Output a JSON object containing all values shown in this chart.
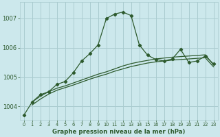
{
  "title": "Graphe pression niveau de la mer (hPa)",
  "bg_color": "#cce8ec",
  "grid_color": "#aaccd0",
  "line_color": "#2d5a2d",
  "xlim": [
    -0.5,
    23.5
  ],
  "ylim": [
    1003.55,
    1007.55
  ],
  "yticks": [
    1004,
    1005,
    1006,
    1007
  ],
  "xticks": [
    0,
    1,
    2,
    3,
    4,
    5,
    6,
    7,
    8,
    9,
    10,
    11,
    12,
    13,
    14,
    15,
    16,
    17,
    18,
    19,
    20,
    21,
    22,
    23
  ],
  "main_line_x": [
    0,
    1,
    2,
    3,
    4,
    5,
    6,
    7,
    8,
    9,
    10,
    11,
    12,
    13,
    14,
    15,
    16,
    17,
    18,
    19,
    20,
    21,
    22,
    23
  ],
  "main_line_y": [
    1003.7,
    1004.15,
    1004.4,
    1004.5,
    1004.75,
    1004.85,
    1005.15,
    1005.55,
    1005.8,
    1006.1,
    1007.0,
    1007.15,
    1007.22,
    1007.1,
    1006.1,
    1005.75,
    1005.6,
    1005.55,
    1005.62,
    1005.95,
    1005.5,
    1005.55,
    1005.72,
    1005.45
  ],
  "smooth_line1_x": [
    1,
    2,
    3,
    4,
    5,
    6,
    7,
    8,
    9,
    10,
    11,
    12,
    13,
    14,
    15,
    16,
    17,
    18,
    19,
    20,
    21,
    22,
    23
  ],
  "smooth_line1_y": [
    1004.15,
    1004.35,
    1004.5,
    1004.62,
    1004.7,
    1004.8,
    1004.9,
    1005.0,
    1005.1,
    1005.18,
    1005.28,
    1005.38,
    1005.46,
    1005.52,
    1005.57,
    1005.62,
    1005.65,
    1005.68,
    1005.7,
    1005.72,
    1005.74,
    1005.76,
    1005.42
  ],
  "smooth_line2_x": [
    1,
    2,
    3,
    4,
    5,
    6,
    7,
    8,
    9,
    10,
    11,
    12,
    13,
    14,
    15,
    16,
    17,
    18,
    19,
    20,
    21,
    22,
    23
  ],
  "smooth_line2_y": [
    1004.05,
    1004.25,
    1004.42,
    1004.55,
    1004.64,
    1004.73,
    1004.83,
    1004.93,
    1005.02,
    1005.1,
    1005.2,
    1005.28,
    1005.36,
    1005.42,
    1005.48,
    1005.52,
    1005.55,
    1005.58,
    1005.6,
    1005.62,
    1005.64,
    1005.66,
    1005.35
  ]
}
